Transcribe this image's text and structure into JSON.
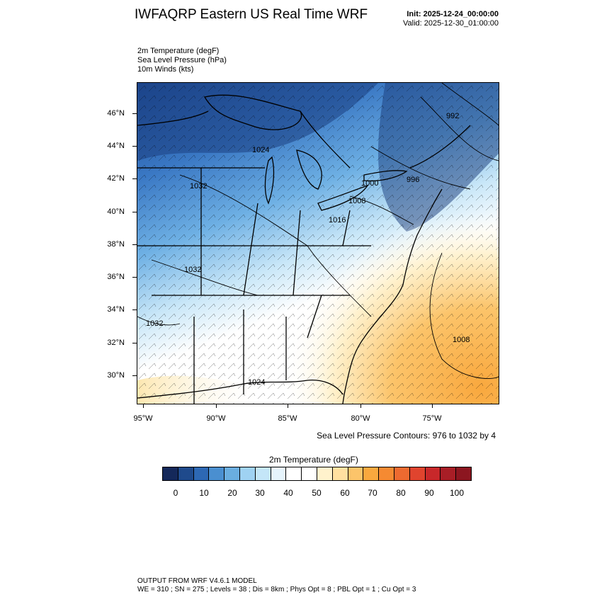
{
  "header": {
    "title": "IWFAQRP Eastern US Real Time WRF",
    "init": "Init: 2025-12-24_00:00:00",
    "valid": "Valid: 2025-12-30_01:00:00"
  },
  "variables": [
    "2m Temperature   (degF)",
    "Sea Level Pressure   (hPa)",
    "10m Winds   (kts)"
  ],
  "map": {
    "lat_labels": [
      "46°N",
      "44°N",
      "42°N",
      "40°N",
      "38°N",
      "36°N",
      "34°N",
      "32°N",
      "30°N"
    ],
    "lon_labels": [
      "95°W",
      "90°W",
      "85°W",
      "80°W",
      "75°W"
    ],
    "pressure_labels": [
      "992",
      "1024",
      "1032",
      "1000",
      "996",
      "1008",
      "1016",
      "1032",
      "1032",
      "1008",
      "1024"
    ],
    "colors": {
      "cold": "#1a3f86",
      "cool": "#5aa2da",
      "mild": "#c7e5f6",
      "neutral": "#ffffff",
      "warm": "#fbb040"
    }
  },
  "contour_note": "Sea Level Pressure Contours: 976 to 1032 by 4",
  "colorbar": {
    "title": "2m Temperature  (degF)",
    "ticks": [
      "0",
      "10",
      "20",
      "30",
      "40",
      "50",
      "60",
      "70",
      "80",
      "90",
      "100"
    ],
    "colors": [
      "#14285a",
      "#1f4a8c",
      "#2d68b4",
      "#4a8fd0",
      "#6aaee0",
      "#9fd2f2",
      "#c4e6f8",
      "#e6f4fc",
      "#ffffff",
      "#ffffff",
      "#fff2cc",
      "#ffe0a0",
      "#fcc46a",
      "#f9a83e",
      "#f58a32",
      "#ee6a30",
      "#e0442e",
      "#c8282a",
      "#a81e26",
      "#8c1620"
    ]
  },
  "footer": {
    "line1": "OUTPUT FROM WRF V4.6.1 MODEL",
    "line2": "WE = 310 ; SN = 275 ; Levels = 38 ; Dis = 8km ; Phys Opt = 8 ; PBL Opt = 1 ; Cu Opt = 3"
  }
}
